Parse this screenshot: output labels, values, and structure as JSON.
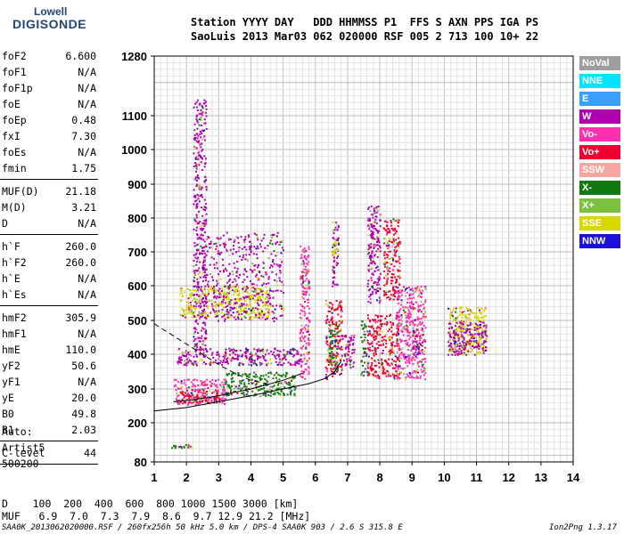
{
  "logo": {
    "line1": "Lowell",
    "line2": "DIGISONDE"
  },
  "header": {
    "row1": "Station YYYY DAY   DDD HHMMSS P1  FFS S AXN PPS IGA PS",
    "row2": "SaoLuis 2013 Mar03 062 020000 RSF 005 2 713 100 10+ 22"
  },
  "params_group1": [
    {
      "name": "foF2",
      "value": "6.600"
    },
    {
      "name": "foF1",
      "value": "N/A"
    },
    {
      "name": "foF1p",
      "value": "N/A"
    },
    {
      "name": "foE",
      "value": "N/A"
    },
    {
      "name": "foEp",
      "value": "0.48"
    },
    {
      "name": "fxI",
      "value": "7.30"
    },
    {
      "name": "foEs",
      "value": "N/A"
    },
    {
      "name": "fmin",
      "value": "1.75"
    }
  ],
  "params_group2": [
    {
      "name": "MUF(D)",
      "value": "21.18"
    },
    {
      "name": "M(D)",
      "value": "3.21"
    },
    {
      "name": "D",
      "value": "N/A"
    }
  ],
  "params_group3": [
    {
      "name": "h`F",
      "value": "260.0"
    },
    {
      "name": "h`F2",
      "value": "260.0"
    },
    {
      "name": "h`E",
      "value": "N/A"
    },
    {
      "name": "h`Es",
      "value": "N/A"
    }
  ],
  "params_group4": [
    {
      "name": "hmF2",
      "value": "305.9"
    },
    {
      "name": "hmF1",
      "value": "N/A"
    },
    {
      "name": "hmE",
      "value": "110.0"
    },
    {
      "name": "yF2",
      "value": "50.6"
    },
    {
      "name": "yF1",
      "value": "N/A"
    },
    {
      "name": "yE",
      "value": "20.0"
    },
    {
      "name": "B0",
      "value": "49.8"
    },
    {
      "name": "B1",
      "value": "2.03"
    }
  ],
  "params_group5": [
    {
      "name": "C-level",
      "value": "44"
    }
  ],
  "auto": {
    "line1": "Auto:",
    "line2": "Artist5",
    "line3": "500200"
  },
  "footer": {
    "d_row": "D    100  200  400  600  800 1000 1500 3000 [km]",
    "muf_row": "MUF   6.9  7.0  7.3  7.9  8.6  9.7 12.9 21.2 [MHz]",
    "source": "SAA0K_2013062020000.RSF / 260fx256h 50 kHz 5.0 km / DPS-4 SAA0K 903 / 2.6 S 315.8 E",
    "version": "Ion2Png 1.3.17"
  },
  "legend": [
    {
      "label": "NoVal",
      "color": "#9e9e9e"
    },
    {
      "label": "NNE",
      "color": "#00e5ff"
    },
    {
      "label": "E",
      "color": "#3aa0ff"
    },
    {
      "label": "W",
      "color": "#b000b0"
    },
    {
      "label": "Vo-",
      "color": "#ff2fb0"
    },
    {
      "label": "Vo+",
      "color": "#ee0030"
    },
    {
      "label": "SSW",
      "color": "#f6a8a0"
    },
    {
      "label": "X-",
      "color": "#107a10"
    },
    {
      "label": "X+",
      "color": "#7cc040"
    },
    {
      "label": "SSE",
      "color": "#d8d800"
    },
    {
      "label": "NNW",
      "color": "#1a10d8"
    }
  ],
  "chart_data": {
    "type": "scatter",
    "xlim": [
      1,
      14
    ],
    "ylim": [
      80,
      1280
    ],
    "x_ticks": [
      "1",
      "2",
      "3",
      "4",
      "5",
      "6",
      "7",
      "8",
      "9",
      "10",
      "11",
      "12",
      "13",
      "14"
    ],
    "y_ticks": [
      {
        "value": 80,
        "label": "80"
      },
      {
        "value": 200,
        "label": "200"
      },
      {
        "value": 300,
        "label": "300"
      },
      {
        "value": 400,
        "label": "400"
      },
      {
        "value": 500,
        "label": "500"
      },
      {
        "value": 600,
        "label": "600"
      },
      {
        "value": 700,
        "label": "700"
      },
      {
        "value": 800,
        "label": "800"
      },
      {
        "value": 900,
        "label": "900"
      },
      {
        "value": 1000,
        "label": "1000"
      },
      {
        "value": 1100,
        "label": "1100"
      },
      {
        "value": 1280,
        "label": "1280"
      }
    ],
    "grid": true,
    "legend_position": "right",
    "profile_curve": [
      [
        1.0,
        235
      ],
      [
        2.0,
        245
      ],
      [
        3.0,
        262
      ],
      [
        4.0,
        280
      ],
      [
        5.0,
        300
      ],
      [
        5.8,
        315
      ],
      [
        6.3,
        330
      ],
      [
        6.6,
        350
      ],
      [
        6.8,
        380
      ]
    ],
    "trace_curve": [
      [
        1.6,
        262
      ],
      [
        2.2,
        268
      ],
      [
        3.0,
        280
      ],
      [
        4.0,
        300
      ],
      [
        5.0,
        325
      ],
      [
        5.6,
        345
      ]
    ],
    "dashed_curve": [
      [
        1.0,
        490
      ],
      [
        1.5,
        460
      ],
      [
        2.0,
        430
      ],
      [
        2.5,
        400
      ],
      [
        3.0,
        370
      ],
      [
        3.5,
        345
      ],
      [
        4.0,
        325
      ],
      [
        4.5,
        315
      ]
    ],
    "echo_regions": [
      {
        "x_from": 1.6,
        "x_to": 3.2,
        "y_from": 255,
        "y_to": 330,
        "color": "#ff2fb0"
      },
      {
        "x_from": 1.7,
        "x_to": 3.0,
        "y_from": 260,
        "y_to": 300,
        "color": "#ee0030"
      },
      {
        "x_from": 1.7,
        "x_to": 5.6,
        "y_from": 370,
        "y_to": 420,
        "color": "#b000b0"
      },
      {
        "x_from": 3.2,
        "x_to": 5.4,
        "y_from": 280,
        "y_to": 350,
        "color": "#107a10"
      },
      {
        "x_from": 1.8,
        "x_to": 4.6,
        "y_from": 510,
        "y_to": 600,
        "color": "#d8d800"
      },
      {
        "x_from": 2.5,
        "x_to": 5.0,
        "y_from": 500,
        "y_to": 760,
        "color": "#b000b0"
      },
      {
        "x_from": 5.5,
        "x_to": 5.8,
        "y_from": 330,
        "y_to": 720,
        "color": "#ff2fb0"
      },
      {
        "x_from": 6.3,
        "x_to": 6.8,
        "y_from": 330,
        "y_to": 560,
        "color": "#ee0030"
      },
      {
        "x_from": 6.4,
        "x_to": 6.7,
        "y_from": 350,
        "y_to": 490,
        "color": "#107a10"
      },
      {
        "x_from": 6.5,
        "x_to": 6.7,
        "y_from": 600,
        "y_to": 790,
        "color": "#b000b0"
      },
      {
        "x_from": 6.5,
        "x_to": 6.7,
        "y_from": 690,
        "y_to": 730,
        "color": "#d8d800"
      },
      {
        "x_from": 7.6,
        "x_to": 8.6,
        "y_from": 330,
        "y_to": 520,
        "color": "#ee0030"
      },
      {
        "x_from": 7.6,
        "x_to": 8.0,
        "y_from": 550,
        "y_to": 840,
        "color": "#b000b0"
      },
      {
        "x_from": 8.5,
        "x_to": 9.4,
        "y_from": 330,
        "y_to": 600,
        "color": "#ff2fb0"
      },
      {
        "x_from": 8.1,
        "x_to": 8.6,
        "y_from": 560,
        "y_to": 800,
        "color": "#ee0030"
      },
      {
        "x_from": 10.1,
        "x_to": 11.3,
        "y_from": 400,
        "y_to": 540,
        "color": "#d8d800"
      },
      {
        "x_from": 10.1,
        "x_to": 11.3,
        "y_from": 400,
        "y_to": 500,
        "color": "#b000b0"
      },
      {
        "x_from": 1.5,
        "x_to": 2.2,
        "y_from": 125,
        "y_to": 135,
        "color": "#107a10"
      },
      {
        "x_from": 2.2,
        "x_to": 2.6,
        "y_from": 400,
        "y_to": 1150,
        "color": "#b000b0"
      },
      {
        "x_from": 6.8,
        "x_to": 7.2,
        "y_from": 360,
        "y_to": 460,
        "color": "#b000b0"
      },
      {
        "x_from": 7.4,
        "x_to": 7.6,
        "y_from": 340,
        "y_to": 500,
        "color": "#107a10"
      },
      {
        "x_from": 9.0,
        "x_to": 9.3,
        "y_from": 400,
        "y_to": 480,
        "color": "#b000b0"
      }
    ]
  }
}
